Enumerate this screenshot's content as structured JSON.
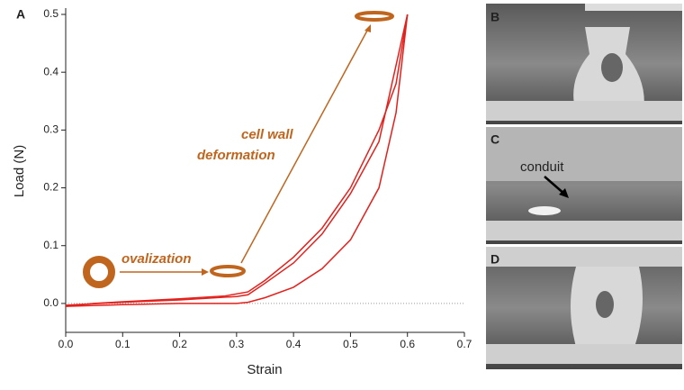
{
  "chart_data": {
    "type": "line",
    "xlabel": "Strain",
    "ylabel": "Load (N)",
    "xlim": [
      0,
      0.7
    ],
    "ylim": [
      -0.05,
      0.5
    ],
    "xticks": [
      {
        "value": 0,
        "label": "0.0"
      },
      0.1,
      0.2,
      0.3,
      0.4,
      0.5,
      0.6,
      0.7
    ],
    "yticks": [
      {
        "value": 0,
        "label": "0.0"
      },
      0.1,
      0.2,
      0.3,
      0.4,
      0.5
    ],
    "series": [
      {
        "color": "#e3201b",
        "x": [
          0,
          0.05,
          0.1,
          0.2,
          0.28,
          0.32,
          0.35,
          0.4,
          0.45,
          0.5,
          0.55,
          0.58,
          0.6
        ],
        "values": [
          -0.005,
          0,
          0.003,
          0.008,
          0.013,
          0.02,
          0.04,
          0.08,
          0.13,
          0.2,
          0.3,
          0.38,
          0.5
        ]
      },
      {
        "color": "#e3201b",
        "x": [
          0,
          0.1,
          0.2,
          0.3,
          0.32,
          0.35,
          0.4,
          0.45,
          0.5,
          0.55,
          0.6
        ],
        "values": [
          -0.003,
          0.002,
          0.006,
          0.012,
          0.015,
          0.035,
          0.07,
          0.12,
          0.19,
          0.28,
          0.5
        ]
      },
      {
        "color": "#e3201b",
        "x": [
          0.6,
          0.58,
          0.55,
          0.5,
          0.45,
          0.4,
          0.35,
          0.32,
          0.3,
          0.2,
          0.1,
          0
        ],
        "values": [
          0.5,
          0.33,
          0.2,
          0.11,
          0.06,
          0.028,
          0.01,
          0.002,
          0,
          0,
          -0.002,
          -0.005
        ]
      }
    ],
    "annotations": [
      "ovalization",
      "cell wall",
      "deformation"
    ],
    "panel_labels": [
      "A",
      "B",
      "C",
      "D"
    ],
    "photo_label": "conduit"
  }
}
